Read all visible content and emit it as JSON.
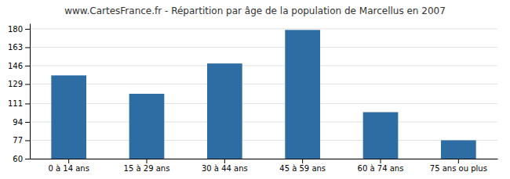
{
  "chart_data": {
    "type": "bar",
    "title": "www.CartesFrance.fr - Répartition par âge de la population de Marcellus en 2007",
    "categories": [
      "0 à 14 ans",
      "15 à 29 ans",
      "30 à 44 ans",
      "45 à 59 ans",
      "60 à 74 ans",
      "75 ans ou plus"
    ],
    "values": [
      137,
      120,
      148,
      179,
      103,
      77
    ],
    "color": "#2e6da4",
    "ylim": [
      60,
      185
    ],
    "yticks": [
      60,
      77,
      94,
      111,
      129,
      146,
      163,
      180
    ],
    "grid": true
  }
}
